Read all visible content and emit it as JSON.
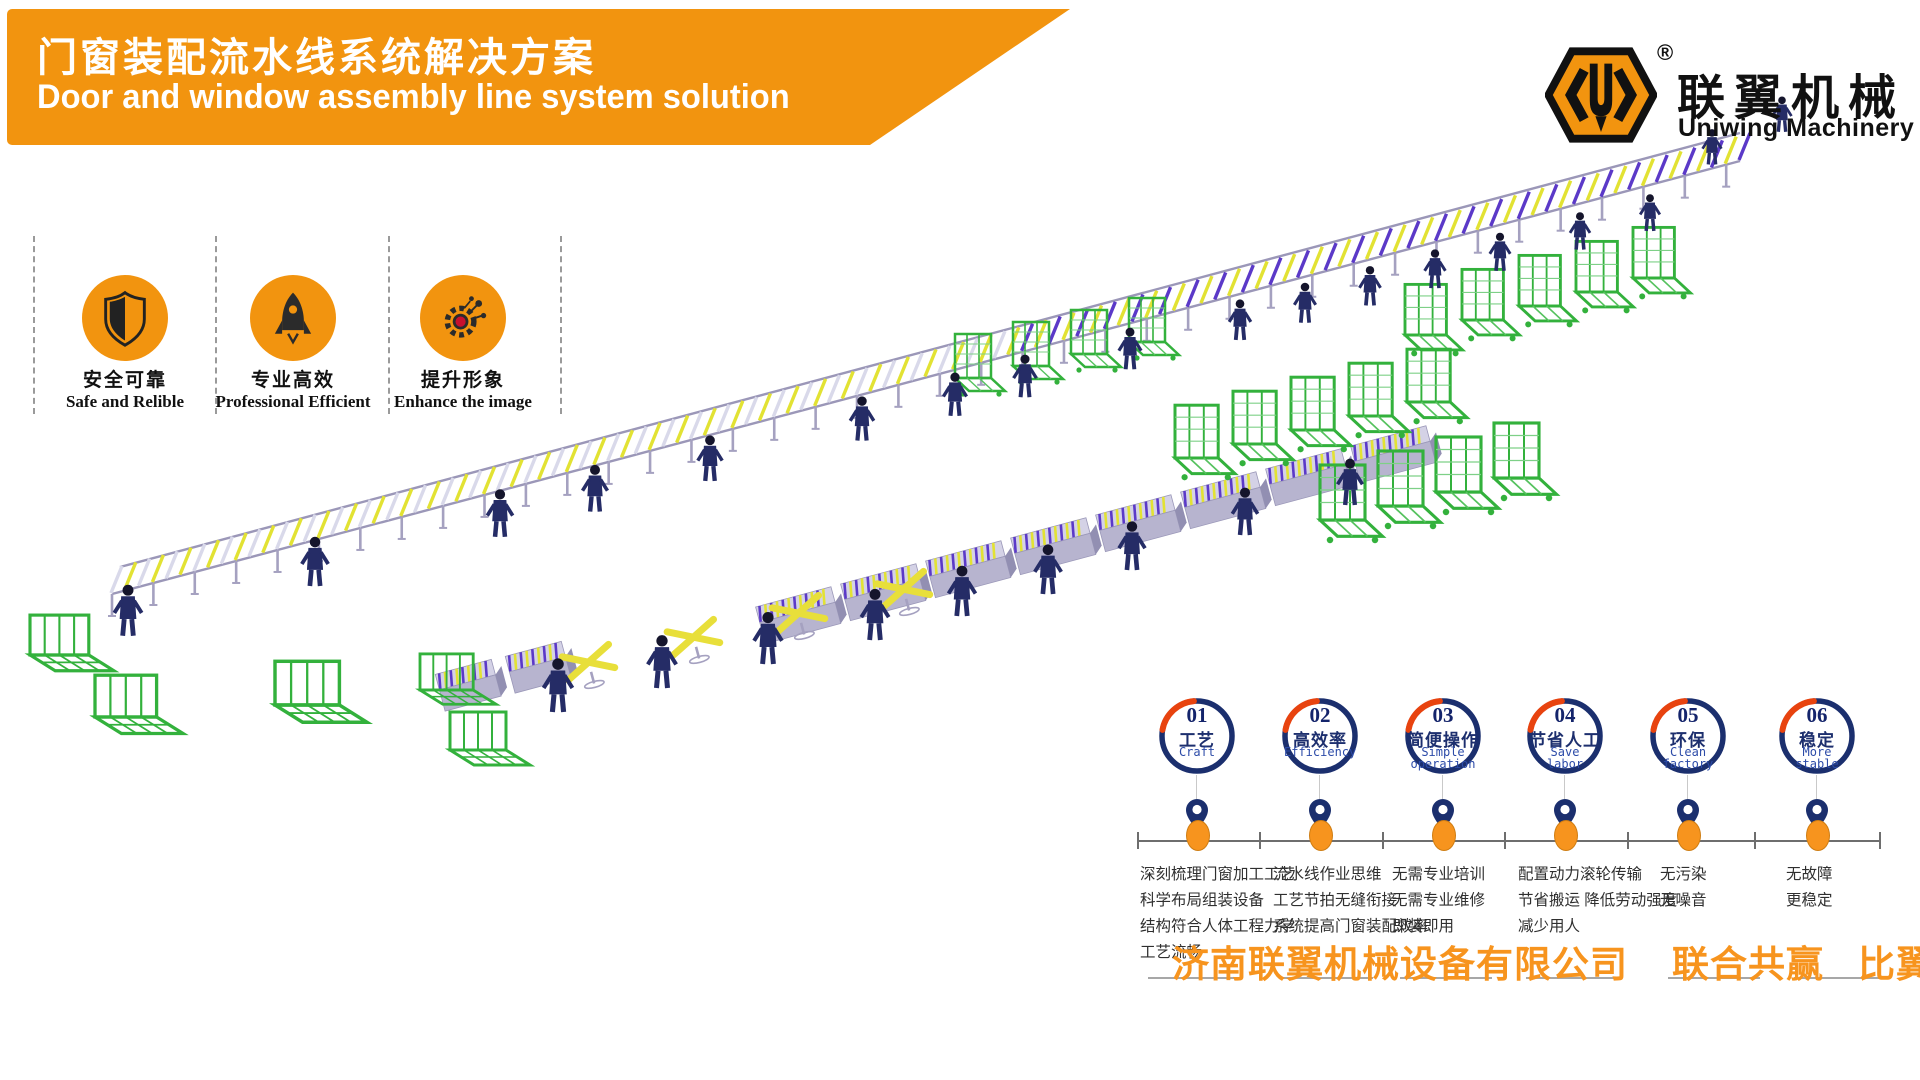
{
  "banner": {
    "title_zh": "门窗装配流水线系统解决方案",
    "title_en": "Door and window assembly line system solution"
  },
  "logo": {
    "monogram": "U",
    "registered_mark": "®",
    "brand_zh": "联翼机械",
    "brand_en": "Uniwing Machinery"
  },
  "badges": [
    {
      "icon": "shield-icon",
      "label_zh": "安全可靠",
      "label_en": "Safe and Relible"
    },
    {
      "icon": "rocket-icon",
      "label_zh": "专业高效",
      "label_en": "Professional Efficient"
    },
    {
      "icon": "molecule-icon",
      "label_zh": "提升形象",
      "label_en": "Enhance the image"
    }
  ],
  "timeline": {
    "items": [
      {
        "number": "01",
        "title_zh": "工艺",
        "title_en": "Craft",
        "desc": [
          "深刻梳理门窗加工工艺",
          "科学布局组装设备",
          "结构符合人体工程力学",
          "工艺流畅"
        ]
      },
      {
        "number": "02",
        "title_zh": "高效率",
        "title_en": "Efficiency",
        "desc": [
          "流水线作业思维",
          "工艺节拍无缝衔接",
          "系统提高门窗装配效率"
        ]
      },
      {
        "number": "03",
        "title_zh": "简便操作",
        "title_en": "Simple operation",
        "desc": [
          "无需专业培训",
          "无需专业维修",
          "即装即用"
        ]
      },
      {
        "number": "04",
        "title_zh": "节省人工",
        "title_en": "Save labor",
        "desc": [
          "配置动力滚轮传输",
          "节省搬运 降低劳动强度",
          "减少用人"
        ]
      },
      {
        "number": "05",
        "title_zh": "环保",
        "title_en": "Clean factory",
        "desc": [
          "无污染",
          "无噪音"
        ]
      },
      {
        "number": "06",
        "title_zh": "稳定",
        "title_en": "More stable",
        "desc": [
          "无故障",
          "更稳定"
        ]
      }
    ]
  },
  "footer": {
    "company": "济南联翼机械设备有限公司",
    "slogan1": "联合共赢",
    "slogan2": "比翼齐飞"
  },
  "colors": {
    "accent_orange": "#F2940F",
    "footer_orange": "#F7941E",
    "navy": "#1B2F6E",
    "arc_red": "#E8430F",
    "timeline_blue": "#2C4BA8",
    "rack_green": "#33B13C",
    "conveyor_gray": "#A5A1C0",
    "roller_yellow": "#E2E233",
    "roller_purple": "#5B39C8"
  }
}
